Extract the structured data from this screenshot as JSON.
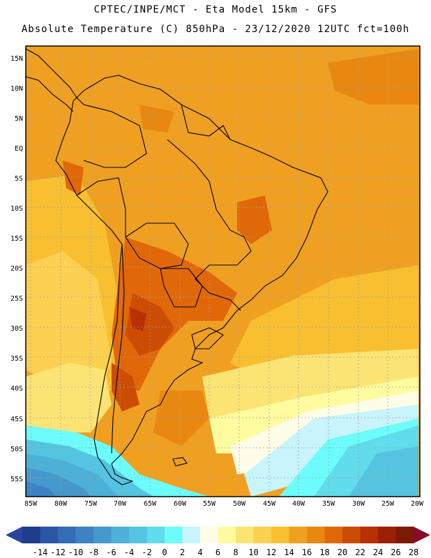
{
  "header": {
    "line1": "CPTEC/INPE/MCT -  Eta Model 15km - GFS",
    "line2": "Absolute Temperature (C) 850hPa - 23/12/2020 12UTC fct=100h"
  },
  "map": {
    "lat_labels": [
      "15N",
      "10N",
      "5N",
      "EQ",
      "5S",
      "10S",
      "15S",
      "20S",
      "25S",
      "30S",
      "35S",
      "40S",
      "45S",
      "50S",
      "55S"
    ],
    "lon_labels": [
      "85W",
      "80W",
      "75W",
      "70W",
      "65W",
      "60W",
      "55W",
      "50W",
      "45W",
      "40W",
      "35W",
      "30W",
      "25W",
      "20W"
    ],
    "lat_range": [
      -58,
      16.5
    ],
    "lon_range": [
      -85.5,
      -20
    ],
    "colors": {
      "background": "#f0a020",
      "land_border": "#000000",
      "grid": "#a0a0a0"
    }
  },
  "colorbar": {
    "labels": [
      "-14",
      "-12",
      "-10",
      "-8",
      "-6",
      "-4",
      "-2",
      "0",
      "2",
      "4",
      "6",
      "8",
      "10",
      "12",
      "14",
      "16",
      "18",
      "20",
      "22",
      "24",
      "26",
      "28"
    ],
    "colors": [
      "#1c3c8c",
      "#2a56a8",
      "#346cb8",
      "#3c82c4",
      "#4498cc",
      "#4cb0d8",
      "#54c4e0",
      "#60dcec",
      "#6cfcfc",
      "#c8f4fc",
      "#fffce8",
      "#fffca0",
      "#fce474",
      "#fcd050",
      "#f8c030",
      "#f0a020",
      "#e88810",
      "#e06808",
      "#cc4c04",
      "#b83004",
      "#9c2004",
      "#7c1a04"
    ],
    "low_color": "#2a44a0",
    "high_color": "#8a0a2a"
  }
}
